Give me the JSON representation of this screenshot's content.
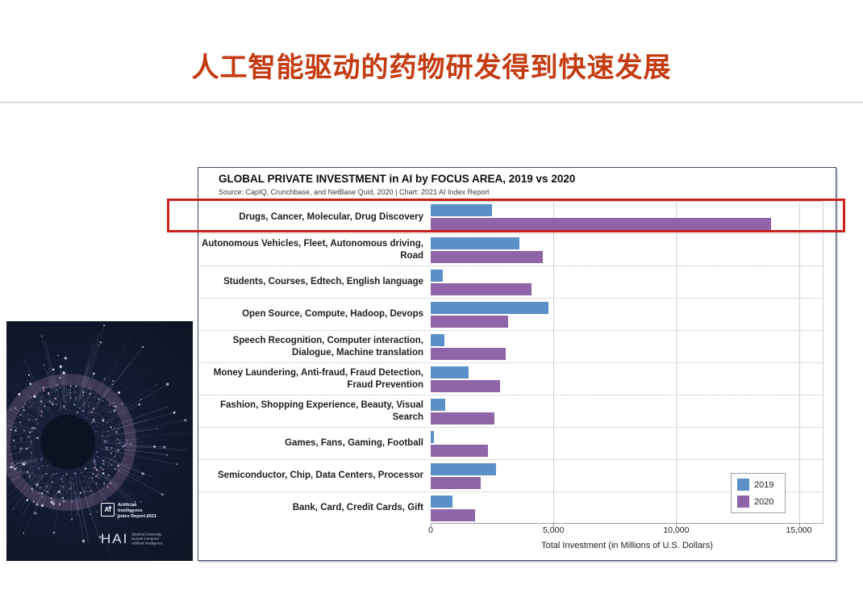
{
  "slide": {
    "title": "人工智能驱动的药物研发得到快速发展",
    "title_color": "#c43b11"
  },
  "cover": {
    "ai_logo_text": "AI",
    "ai_label_lines": [
      "Artificial",
      "Intelligence",
      "Index Report 2021"
    ],
    "hai_logo_text": "HAI",
    "hai_label_lines": [
      "Stanford University",
      "Human-Centered",
      "Artificial Intelligence"
    ]
  },
  "chart": {
    "title": "GLOBAL PRIVATE INVESTMENT in AI by FOCUS AREA, 2019 vs 2020",
    "source": "Source: CapIQ, Crunchbase, and NetBase Quid, 2020 | Chart: 2021 AI Index Report",
    "xlabel": "Total Investment (in Millions of U.S. Dollars)"
  },
  "chart_data": {
    "type": "bar",
    "orientation": "horizontal",
    "title": "GLOBAL PRIVATE INVESTMENT in AI by FOCUS AREA, 2019 vs 2020",
    "xlabel": "Total Investment (in Millions of U.S. Dollars)",
    "xlim": [
      0,
      16000
    ],
    "x_tick_values": [
      0,
      5000,
      10000,
      15000
    ],
    "x_tick_labels": [
      "0",
      "5,000",
      "10,000",
      "15,000"
    ],
    "grid": true,
    "legend_position": "inside-bottom-right",
    "categories": [
      "Drugs, Cancer, Molecular, Drug Discovery",
      "Autonomous Vehicles, Fleet, Autonomous driving, Road",
      "Students, Courses, Edtech, English language",
      "Open Source, Compute, Hadoop, Devops",
      "Speech Recognition, Computer interaction, Dialogue, Machine translation",
      "Money Laundering, Anti-fraud, Fraud Detection, Fraud Prevention",
      "Fashion, Shopping Experience, Beauty, Visual Search",
      "Games, Fans, Gaming, Football",
      "Semiconductor, Chip, Data Centers, Processor",
      "Bank, Card, Credit Cards, Gift"
    ],
    "series": [
      {
        "name": "2019",
        "color": "#5b8fc7",
        "values": [
          2500,
          3600,
          500,
          4800,
          560,
          1550,
          590,
          130,
          2660,
          890
        ]
      },
      {
        "name": "2020",
        "color": "#9064a8",
        "values": [
          13850,
          4570,
          4100,
          3150,
          3050,
          2830,
          2600,
          2330,
          2040,
          1810
        ]
      }
    ],
    "highlighted_category": "Drugs, Cancer, Molecular, Drug Discovery",
    "highlight_color": "#c9221c"
  }
}
